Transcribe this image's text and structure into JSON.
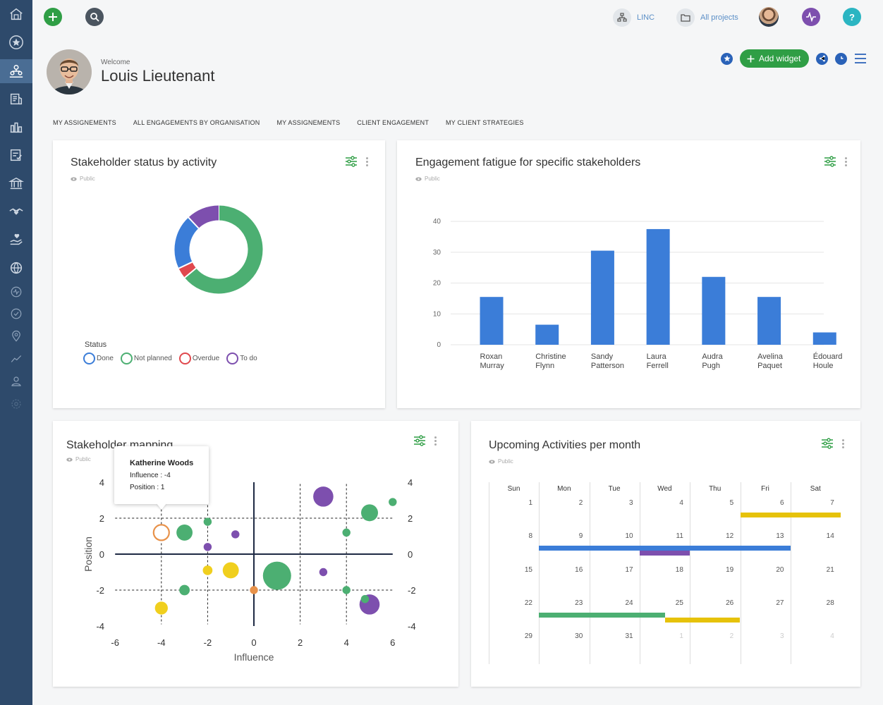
{
  "topbar": {
    "linc_label": "LINC",
    "projects_label": "All projects"
  },
  "welcome": {
    "label": "Welcome",
    "name": "Louis Lieutenant"
  },
  "toolbar": {
    "add_widget_label": "Add widget"
  },
  "tabs": [
    {
      "label": "MY ASSIGNEMENTS"
    },
    {
      "label": "ALL ENGAGEMENTS BY ORGANISATION"
    },
    {
      "label": "MY ASSIGNEMENTS"
    },
    {
      "label": "CLIENT ENGAGEMENT"
    },
    {
      "label": "MY CLIENT STRATEGIES"
    }
  ],
  "widgets": {
    "status": {
      "title": "Stakeholder status by activity",
      "visibility": "Public",
      "legend_title": "Status",
      "legend": [
        {
          "label": "Done",
          "color": "#3b7dd8"
        },
        {
          "label": "Not planned",
          "color": "#4caf72"
        },
        {
          "label": "Overdue",
          "color": "#e0484d"
        },
        {
          "label": "To do",
          "color": "#7d4fae"
        }
      ]
    },
    "fatigue": {
      "title": "Engagement fatigue for specific stakeholders",
      "visibility": "Public"
    },
    "mapping": {
      "title": "Stakeholder mapping",
      "visibility": "Public",
      "tooltip": {
        "name": "Katherine Woods",
        "influence": "Influence : -4",
        "position": "Position : 1"
      }
    },
    "calendar": {
      "title": "Upcoming Activities per month",
      "visibility": "Public",
      "day_names": [
        "Sun",
        "Mon",
        "Tue",
        "Wed",
        "Thu",
        "Fri",
        "Sat"
      ],
      "weeks": [
        [
          "1",
          "2",
          "3",
          "4",
          "5",
          "6",
          "7"
        ],
        [
          "8",
          "9",
          "10",
          "11",
          "12",
          "13",
          "14"
        ],
        [
          "15",
          "16",
          "17",
          "18",
          "19",
          "20",
          "21"
        ],
        [
          "22",
          "23",
          "24",
          "25",
          "26",
          "27",
          "28"
        ],
        [
          "29",
          "30",
          "31",
          "1",
          "2",
          "3",
          "4"
        ]
      ]
    }
  },
  "chart_data": [
    {
      "type": "pie",
      "subtype": "donut",
      "categories": [
        "Not planned",
        "Overdue",
        "Done",
        "To do"
      ],
      "values": [
        64,
        4,
        20,
        12
      ],
      "colors": [
        "#4caf72",
        "#e0484d",
        "#3b7dd8",
        "#7d4fae"
      ],
      "legend": "bottom-left"
    },
    {
      "type": "bar",
      "categories": [
        "Roxan Murray",
        "Christine Flynn",
        "Sandy Patterson",
        "Laura Ferrell",
        "Audra Pugh",
        "Avelina Paquet",
        "Édouard Houle"
      ],
      "values": [
        15.5,
        6.5,
        30.5,
        37.5,
        22,
        15.5,
        4
      ],
      "yticks": [
        0,
        10,
        20,
        30,
        40
      ],
      "ylim": [
        0,
        40
      ],
      "color": "#3b7dd8",
      "grid": true
    },
    {
      "type": "scatter",
      "xlabel": "Influence",
      "ylabel": "Position",
      "xlim": [
        -6,
        6
      ],
      "ylim": [
        -4,
        4
      ],
      "xticks": [
        -6,
        -4,
        -2,
        0,
        2,
        4,
        6
      ],
      "yticks": [
        -4,
        -2,
        0,
        2,
        4
      ],
      "points": [
        {
          "x": -4,
          "y": 1.2,
          "r": 2,
          "color": "#e8924a",
          "hollow": true
        },
        {
          "x": -3,
          "y": 1.2,
          "r": 2,
          "color": "#4caf72"
        },
        {
          "x": -2,
          "y": 1.8,
          "r": 1,
          "color": "#4caf72"
        },
        {
          "x": -2,
          "y": 0.4,
          "r": 1,
          "color": "#7d4fae"
        },
        {
          "x": -0.8,
          "y": 1.1,
          "r": 1,
          "color": "#7d4fae"
        },
        {
          "x": -2,
          "y": -0.9,
          "r": 1.2,
          "color": "#f0cf1e"
        },
        {
          "x": -1,
          "y": -0.9,
          "r": 2,
          "color": "#f0cf1e"
        },
        {
          "x": -3,
          "y": -2,
          "r": 1.3,
          "color": "#4caf72"
        },
        {
          "x": -4,
          "y": -3,
          "r": 1.6,
          "color": "#f0cf1e"
        },
        {
          "x": 0,
          "y": -2,
          "r": 1,
          "color": "#e8924a"
        },
        {
          "x": 1,
          "y": -1.2,
          "r": 3.5,
          "color": "#4caf72"
        },
        {
          "x": 3,
          "y": -1,
          "r": 1,
          "color": "#7d4fae"
        },
        {
          "x": 3,
          "y": 3.2,
          "r": 2.5,
          "color": "#7d4fae"
        },
        {
          "x": 4,
          "y": 1.2,
          "r": 1,
          "color": "#4caf72"
        },
        {
          "x": 5,
          "y": 2.3,
          "r": 2.1,
          "color": "#4caf72"
        },
        {
          "x": 6,
          "y": 2.9,
          "r": 1,
          "color": "#4caf72"
        },
        {
          "x": 4,
          "y": -2,
          "r": 1,
          "color": "#4caf72"
        },
        {
          "x": 5,
          "y": -2.8,
          "r": 2.5,
          "color": "#7d4fae"
        },
        {
          "x": 4.8,
          "y": -2.5,
          "r": 1,
          "color": "#4caf72"
        }
      ]
    }
  ]
}
